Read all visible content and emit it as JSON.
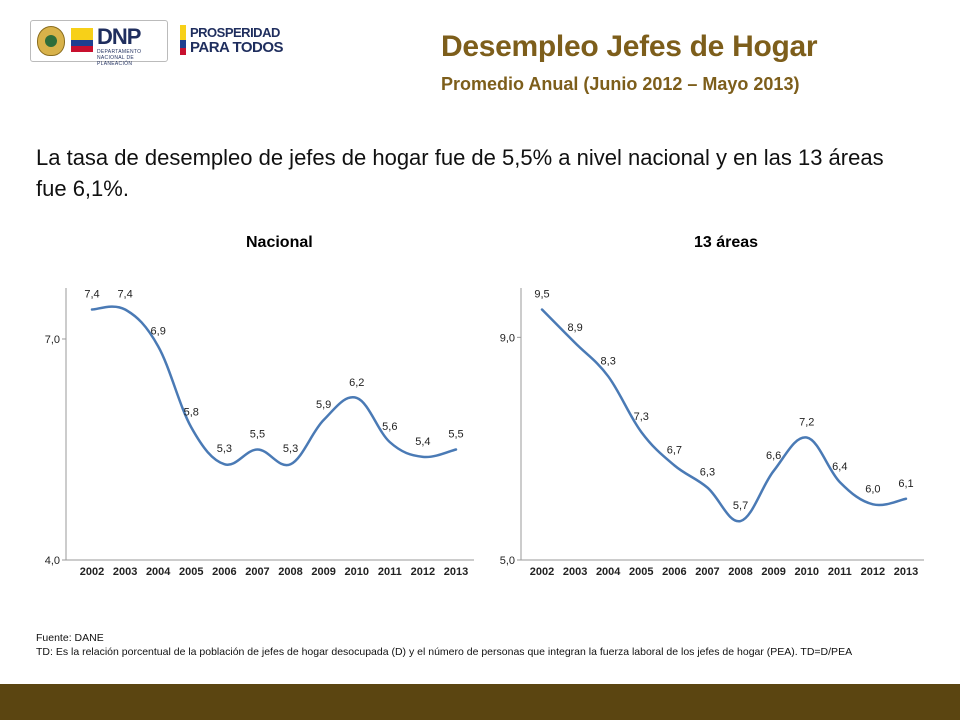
{
  "header": {
    "logo_dnp": "DNP",
    "logo_dnp_sub": "DEPARTAMENTO NACIONAL DE PLANEACIÓN",
    "logo_prosperidad_line1": "PROSPERIDAD",
    "logo_prosperidad_line2": "PARA TODOS",
    "title": "Desempleo Jefes de Hogar",
    "subtitle": "Promedio Anual (Junio 2012 – Mayo 2013)"
  },
  "lead_text": "La tasa de desempleo de jefes de hogar fue de 5,5% a nivel nacional y en las 13 áreas fue 6,1%.",
  "chart_data": [
    {
      "type": "line",
      "title": "Nacional",
      "x": [
        "2002",
        "2003",
        "2004",
        "2005",
        "2006",
        "2007",
        "2008",
        "2009",
        "2010",
        "2011",
        "2012",
        "2013"
      ],
      "y_labels": [
        "7,4",
        "7,4",
        "6,9",
        "5,8",
        "5,3",
        "5,5",
        "5,3",
        "5,9",
        "6,2",
        "5,6",
        "5,4",
        "5,5"
      ],
      "values": [
        7.4,
        7.4,
        6.9,
        5.8,
        5.3,
        5.5,
        5.3,
        5.9,
        6.2,
        5.6,
        5.4,
        5.5
      ],
      "ylim": [
        4.0,
        7.4
      ],
      "yticks": [
        {
          "value": 4.0,
          "label": "4,0"
        },
        {
          "value": 7.0,
          "label": "7,0"
        }
      ],
      "line_color": "#4a7ab5",
      "grid": false
    },
    {
      "type": "line",
      "title": "13 áreas",
      "x": [
        "2002",
        "2003",
        "2004",
        "2005",
        "2006",
        "2007",
        "2008",
        "2009",
        "2010",
        "2011",
        "2012",
        "2013"
      ],
      "y_labels": [
        "9,5",
        "8,9",
        "8,3",
        "7,3",
        "6,7",
        "6,3",
        "5,7",
        "6,6",
        "7,2",
        "6,4",
        "6,0",
        "6,1"
      ],
      "values": [
        9.5,
        8.9,
        8.3,
        7.3,
        6.7,
        6.3,
        5.7,
        6.6,
        7.2,
        6.4,
        6.0,
        6.1
      ],
      "ylim": [
        5.0,
        9.5
      ],
      "yticks": [
        {
          "value": 5.0,
          "label": "5,0"
        },
        {
          "value": 9.0,
          "label": "9,0"
        }
      ],
      "line_color": "#4a7ab5",
      "grid": false
    }
  ],
  "footer": {
    "source": "Fuente: DANE",
    "definition": "TD:  Es la relación porcentual de la población de jefes de hogar desocupada (D) y el número  de personas que integran  la fuerza laboral de los jefes de hogar (PEA). TD=D/PEA"
  },
  "colors": {
    "title": "#7d5e1b",
    "bottom_bar": "#5b4511",
    "series_line": "#4a7ab5"
  }
}
